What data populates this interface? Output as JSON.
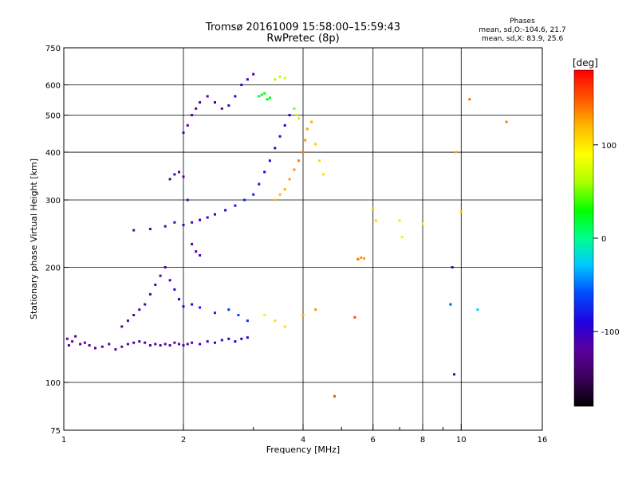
{
  "title_line1": "Tromsø 20161009 15:58:00–15:59:43",
  "title_line2": "RwPretec (8p)",
  "stats": {
    "title": "Phases",
    "line1": "mean, sd,O:-104.6, 21.7",
    "line2": "mean, sd,X:  83.9, 25.6"
  },
  "chart_data": {
    "type": "scatter",
    "xlabel": "Frequency [MHz]",
    "ylabel": "Stationary phase Virtual Height [km]",
    "xscale": "log",
    "yscale": "log",
    "xlim": [
      1,
      16
    ],
    "ylim": [
      75,
      750
    ],
    "x_ticks": [
      1,
      2,
      4,
      6,
      8,
      10,
      16
    ],
    "x_minor_ticks": [
      3,
      5,
      7,
      9
    ],
    "y_ticks": [
      75,
      100,
      200,
      300,
      400,
      500,
      600,
      750
    ],
    "grid": true,
    "colorbar": {
      "label": "[deg]",
      "range": [
        -180,
        180
      ],
      "ticks": [
        100,
        0,
        -100
      ],
      "colors": [
        "#000000",
        "#3a0055",
        "#5a00a0",
        "#2000e0",
        "#0050ff",
        "#00c8ff",
        "#00ff90",
        "#00ff00",
        "#b0ff00",
        "#ffff00",
        "#ffb000",
        "#ff5000",
        "#ff0000"
      ]
    },
    "series": [
      {
        "values": [
          [
            1.02,
            130,
            -120
          ],
          [
            1.03,
            125,
            -125
          ],
          [
            1.05,
            128,
            -122
          ],
          [
            1.07,
            132,
            -118
          ],
          [
            1.1,
            126,
            -125
          ],
          [
            1.13,
            127,
            -120
          ],
          [
            1.16,
            125,
            -124
          ],
          [
            1.2,
            123,
            -126
          ],
          [
            1.25,
            124,
            -120
          ],
          [
            1.3,
            126,
            -118
          ],
          [
            1.35,
            122,
            -125
          ],
          [
            1.4,
            124,
            -122
          ],
          [
            1.45,
            126,
            -120
          ],
          [
            1.5,
            127,
            -118
          ],
          [
            1.55,
            128,
            -122
          ],
          [
            1.6,
            127,
            -120
          ],
          [
            1.65,
            125,
            -118
          ],
          [
            1.7,
            126,
            -115
          ],
          [
            1.75,
            125,
            -118
          ],
          [
            1.8,
            126,
            -120
          ],
          [
            1.85,
            125,
            -118
          ],
          [
            1.9,
            127,
            -120
          ],
          [
            1.95,
            126,
            -117
          ],
          [
            2.0,
            125,
            -118
          ],
          [
            2.05,
            126,
            -115
          ],
          [
            2.1,
            127,
            -112
          ],
          [
            2.2,
            126,
            -110
          ],
          [
            2.3,
            128,
            -108
          ],
          [
            2.4,
            127,
            -105
          ],
          [
            2.5,
            129,
            -100
          ],
          [
            2.6,
            130,
            -100
          ],
          [
            2.7,
            128,
            -98
          ],
          [
            2.8,
            130,
            -95
          ],
          [
            2.9,
            131,
            -96
          ]
        ]
      },
      {
        "values": [
          [
            1.4,
            140,
            -120
          ],
          [
            1.45,
            145,
            -118
          ],
          [
            1.5,
            150,
            -115
          ],
          [
            1.55,
            155,
            -118
          ],
          [
            1.6,
            160,
            -115
          ],
          [
            1.65,
            170,
            -112
          ],
          [
            1.7,
            180,
            -118
          ],
          [
            1.75,
            190,
            -120
          ],
          [
            1.8,
            200,
            -118
          ],
          [
            1.85,
            185,
            -110
          ],
          [
            1.9,
            175,
            -105
          ],
          [
            1.95,
            165,
            -100
          ],
          [
            2.0,
            158,
            -90
          ],
          [
            2.1,
            160,
            -85
          ],
          [
            2.2,
            157,
            -80
          ],
          [
            2.4,
            152,
            -75
          ],
          [
            2.6,
            155,
            -70
          ],
          [
            2.75,
            150,
            -65
          ],
          [
            2.9,
            145,
            -75
          ]
        ]
      },
      {
        "values": [
          [
            1.5,
            250,
            -120
          ],
          [
            1.65,
            252,
            -118
          ],
          [
            1.8,
            256,
            -115
          ],
          [
            1.9,
            262,
            -112
          ],
          [
            2.0,
            258,
            -112
          ],
          [
            2.1,
            262,
            -110
          ],
          [
            2.2,
            266,
            -105
          ],
          [
            2.3,
            270,
            -100
          ],
          [
            2.4,
            275,
            -95
          ],
          [
            2.55,
            282,
            -90
          ],
          [
            2.7,
            290,
            -85
          ],
          [
            2.85,
            300,
            -80
          ],
          [
            3.0,
            310,
            -80
          ],
          [
            3.1,
            330,
            -85
          ],
          [
            3.2,
            355,
            -90
          ],
          [
            3.3,
            380,
            -95
          ],
          [
            3.4,
            410,
            -100
          ],
          [
            3.5,
            440,
            -100
          ],
          [
            3.6,
            470,
            -95
          ],
          [
            3.7,
            500,
            -90
          ]
        ]
      },
      {
        "values": [
          [
            1.85,
            340,
            -130
          ],
          [
            1.9,
            350,
            -125
          ],
          [
            1.95,
            355,
            -120
          ],
          [
            2.0,
            345,
            -120
          ],
          [
            2.05,
            300,
            -115
          ],
          [
            2.1,
            230,
            -120
          ],
          [
            2.15,
            220,
            -118
          ],
          [
            2.2,
            215,
            -115
          ]
        ]
      },
      {
        "values": [
          [
            2.0,
            450,
            -125
          ],
          [
            2.05,
            470,
            -120
          ],
          [
            2.1,
            500,
            -120
          ],
          [
            2.15,
            520,
            -118
          ],
          [
            2.2,
            540,
            -115
          ],
          [
            2.3,
            560,
            -110
          ],
          [
            2.4,
            540,
            -105
          ],
          [
            2.5,
            520,
            -110
          ],
          [
            2.6,
            530,
            -108
          ],
          [
            2.7,
            560,
            -105
          ],
          [
            2.8,
            600,
            -100
          ],
          [
            2.9,
            620,
            -110
          ],
          [
            3.0,
            640,
            -115
          ]
        ]
      },
      {
        "values": [
          [
            3.1,
            560,
            20
          ],
          [
            3.15,
            565,
            22
          ],
          [
            3.2,
            570,
            25
          ],
          [
            3.25,
            550,
            30
          ],
          [
            3.3,
            555,
            28
          ],
          [
            3.4,
            620,
            60
          ],
          [
            3.5,
            630,
            65
          ],
          [
            3.6,
            625,
            70
          ],
          [
            3.8,
            520,
            50
          ],
          [
            3.85,
            500,
            60
          ],
          [
            3.9,
            490,
            70
          ]
        ]
      },
      {
        "values": [
          [
            3.4,
            300,
            110
          ],
          [
            3.5,
            310,
            115
          ],
          [
            3.6,
            320,
            120
          ],
          [
            3.7,
            340,
            125
          ],
          [
            3.8,
            360,
            130
          ],
          [
            3.9,
            380,
            135
          ],
          [
            4.0,
            400,
            140
          ],
          [
            4.05,
            430,
            130
          ],
          [
            4.1,
            460,
            125
          ],
          [
            4.2,
            480,
            120
          ],
          [
            4.3,
            420,
            110
          ],
          [
            4.4,
            380,
            105
          ],
          [
            4.5,
            350,
            100
          ]
        ]
      },
      {
        "values": [
          [
            3.2,
            150,
            95
          ],
          [
            3.4,
            145,
            100
          ],
          [
            3.6,
            140,
            105
          ],
          [
            4.0,
            150,
            120
          ],
          [
            4.3,
            155,
            130
          ]
        ]
      },
      {
        "values": [
          [
            5.5,
            210,
            140
          ],
          [
            5.6,
            212,
            130
          ],
          [
            5.7,
            211,
            125
          ],
          [
            4.8,
            92,
            150
          ],
          [
            5.4,
            148,
            150
          ],
          [
            6.0,
            285,
            110
          ],
          [
            6.1,
            265,
            105
          ],
          [
            7.0,
            265,
            100
          ],
          [
            7.1,
            240,
            95
          ],
          [
            8.0,
            260,
            80
          ],
          [
            9.4,
            160,
            -60
          ],
          [
            9.5,
            200,
            -110
          ],
          [
            9.6,
            105,
            -100
          ],
          [
            9.7,
            400,
            120
          ],
          [
            10.0,
            280,
            110
          ],
          [
            10.5,
            550,
            140
          ],
          [
            11.0,
            155,
            -30
          ],
          [
            13.0,
            480,
            135
          ]
        ]
      }
    ]
  }
}
